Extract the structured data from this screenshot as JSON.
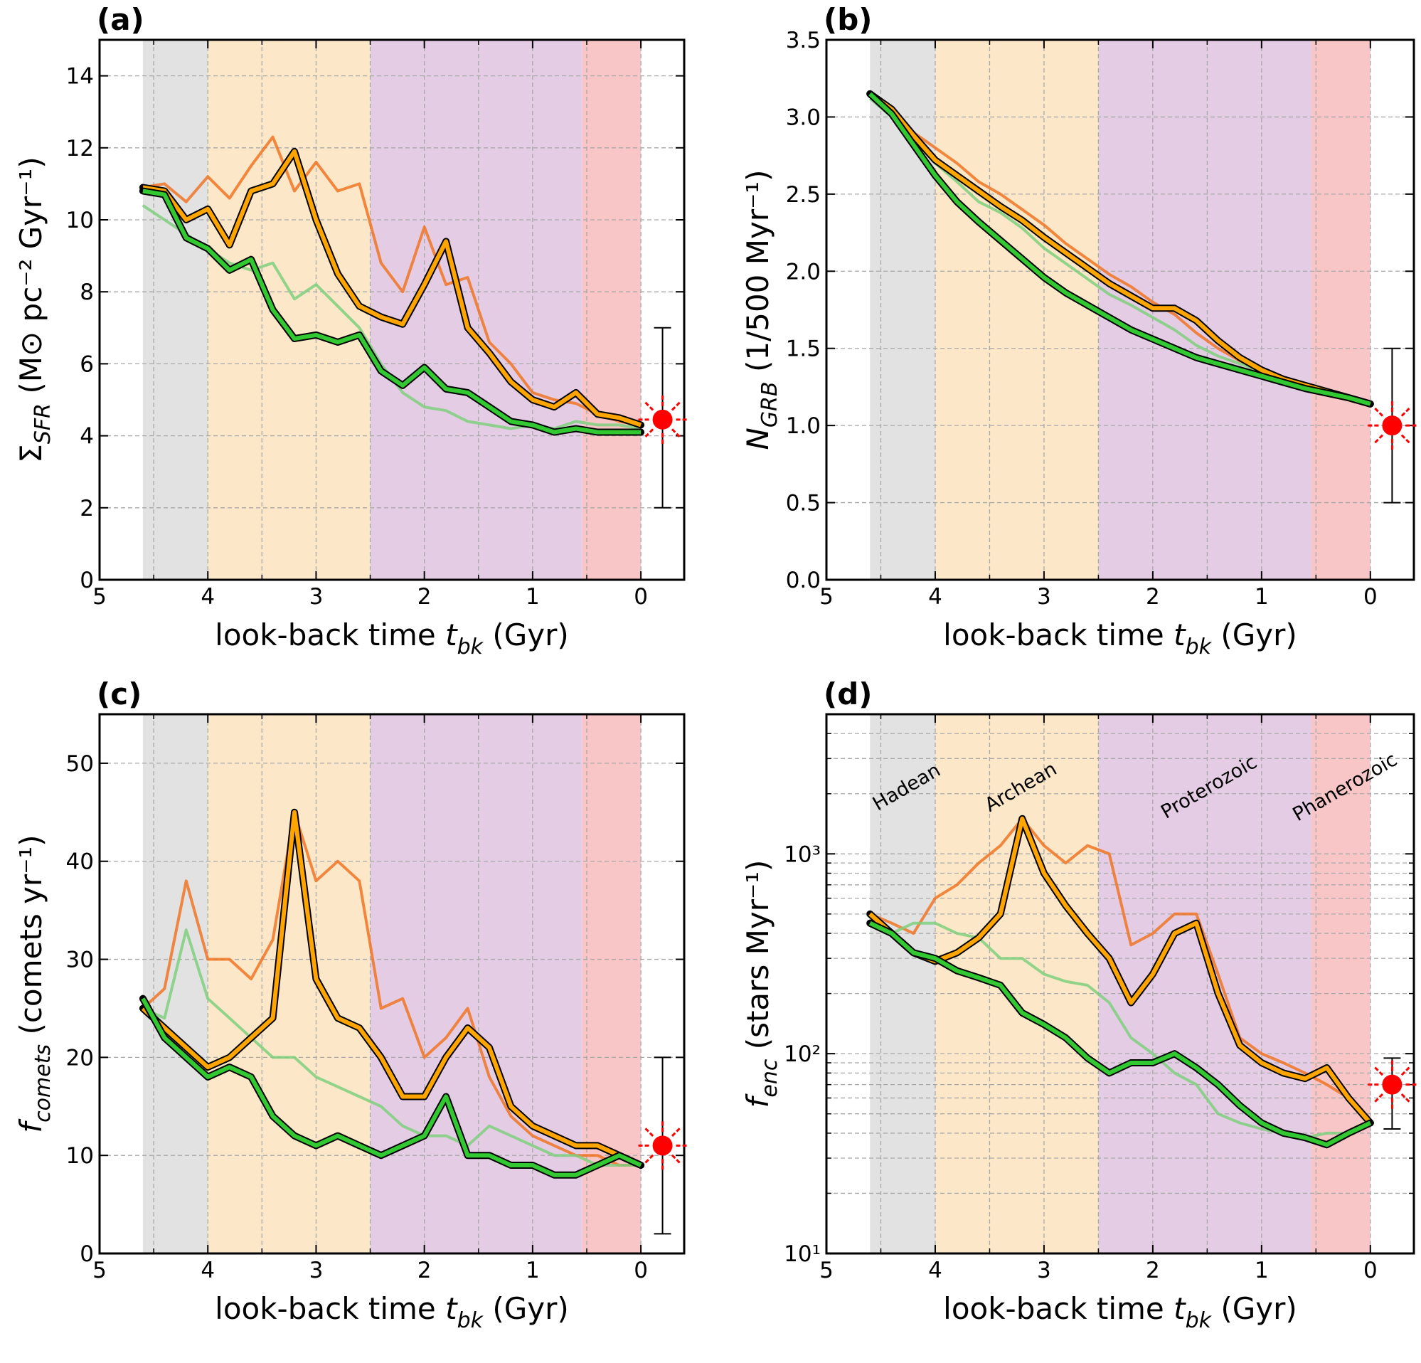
{
  "chart_data": [
    {
      "type": "line",
      "title": "(a)",
      "xlabel": {
        "prefix": "look-back time ",
        "symbol": "t",
        "sub": "bk",
        "unit": " (Gyr)"
      },
      "ylabel": {
        "symbol": "Σ",
        "sub": "SFR",
        "unit": " (M⊙ pc⁻² Gyr⁻¹)"
      },
      "xlim": [
        5,
        -0.4
      ],
      "xticks": [
        5,
        4,
        3,
        2,
        1,
        0
      ],
      "minor_xticks": [
        4.5,
        3.5,
        2.5,
        1.5,
        0.5
      ],
      "ylim": [
        0,
        15
      ],
      "yticks": [
        0,
        2,
        4,
        6,
        8,
        10,
        12,
        14
      ],
      "grid": true,
      "bands": [
        {
          "from": 4.6,
          "to": 4.0,
          "color": "#e2e2e2"
        },
        {
          "from": 4.0,
          "to": 2.5,
          "color": "#fce8c8"
        },
        {
          "from": 2.5,
          "to": 0.541,
          "color": "#e4cde4"
        },
        {
          "from": 0.541,
          "to": 0,
          "color": "#f8c6c6"
        }
      ],
      "x": [
        4.6,
        4.4,
        4.2,
        4.0,
        3.8,
        3.6,
        3.4,
        3.2,
        3.0,
        2.8,
        2.6,
        2.4,
        2.2,
        2.0,
        1.8,
        1.6,
        1.4,
        1.2,
        1.0,
        0.8,
        0.6,
        0.4,
        0.2,
        0.0
      ],
      "series": [
        {
          "color": "#f07424",
          "values": [
            10.9,
            11.0,
            10.5,
            11.2,
            10.6,
            11.5,
            12.3,
            10.8,
            11.6,
            10.8,
            11.0,
            8.8,
            8.0,
            9.8,
            8.2,
            8.4,
            6.6,
            6.0,
            5.2,
            5.0,
            4.9,
            4.6,
            4.4,
            4.3
          ]
        },
        {
          "color": "#7fcf7f",
          "values": [
            10.4,
            10.0,
            9.6,
            9.2,
            8.8,
            8.6,
            8.8,
            7.8,
            8.2,
            7.6,
            7.0,
            6.0,
            5.2,
            4.8,
            4.7,
            4.4,
            4.3,
            4.2,
            4.3,
            4.2,
            4.4,
            4.3,
            4.3,
            4.2
          ]
        },
        {
          "color": "#ffa500",
          "outline": "#000000",
          "values": [
            10.9,
            10.8,
            10.0,
            10.3,
            9.3,
            10.8,
            11.0,
            11.9,
            10.0,
            8.5,
            7.6,
            7.3,
            7.1,
            8.2,
            9.4,
            7.0,
            6.3,
            5.5,
            5.0,
            4.8,
            5.2,
            4.6,
            4.5,
            4.3
          ]
        },
        {
          "color": "#32c832",
          "outline": "#000000",
          "values": [
            10.8,
            10.7,
            9.5,
            9.2,
            8.6,
            8.9,
            7.5,
            6.7,
            6.8,
            6.6,
            6.8,
            5.8,
            5.4,
            5.9,
            5.3,
            5.2,
            4.8,
            4.4,
            4.3,
            4.1,
            4.2,
            4.1,
            4.1,
            4.1
          ]
        }
      ],
      "point": {
        "x": -0.2,
        "y": 4.45,
        "ylow": 2,
        "yhigh": 7,
        "color": "#ff0000"
      }
    },
    {
      "type": "line",
      "title": "(b)",
      "xlabel": {
        "prefix": "look-back time ",
        "symbol": "t",
        "sub": "bk",
        "unit": " (Gyr)"
      },
      "ylabel": {
        "symbol": "N",
        "sub": "GRB",
        "unit": " (1/500 Myr⁻¹)"
      },
      "xlim": [
        5,
        -0.4
      ],
      "xticks": [
        5,
        4,
        3,
        2,
        1,
        0
      ],
      "minor_xticks": [
        4.5,
        3.5,
        2.5,
        1.5,
        0.5
      ],
      "ylim": [
        0,
        3.5
      ],
      "yticks": [
        {
          "value": 0,
          "label": "0.0"
        },
        0.5,
        {
          "value": 1,
          "label": "1.0"
        },
        1.5,
        {
          "value": 2,
          "label": "2.0"
        },
        2.5,
        {
          "value": 3,
          "label": "3.0"
        },
        3.5
      ],
      "grid": true,
      "bands": [
        {
          "from": 4.6,
          "to": 4.0,
          "color": "#e2e2e2"
        },
        {
          "from": 4.0,
          "to": 2.5,
          "color": "#fce8c8"
        },
        {
          "from": 2.5,
          "to": 0.541,
          "color": "#e4cde4"
        },
        {
          "from": 0.541,
          "to": 0,
          "color": "#f8c6c6"
        }
      ],
      "x": [
        4.6,
        4.4,
        4.2,
        4.0,
        3.8,
        3.6,
        3.4,
        3.2,
        3.0,
        2.8,
        2.6,
        2.4,
        2.2,
        2.0,
        1.8,
        1.6,
        1.4,
        1.2,
        1.0,
        0.8,
        0.6,
        0.4,
        0.2,
        0.0
      ],
      "series": [
        {
          "color": "#f07424",
          "values": [
            3.15,
            3.05,
            2.9,
            2.8,
            2.7,
            2.58,
            2.5,
            2.4,
            2.3,
            2.18,
            2.08,
            1.98,
            1.9,
            1.8,
            1.72,
            1.6,
            1.5,
            1.42,
            1.36,
            1.3,
            1.26,
            1.22,
            1.18,
            1.14
          ]
        },
        {
          "color": "#7fcf7f",
          "values": [
            3.12,
            3.0,
            2.85,
            2.7,
            2.58,
            2.45,
            2.38,
            2.28,
            2.15,
            2.05,
            1.95,
            1.85,
            1.78,
            1.7,
            1.62,
            1.52,
            1.45,
            1.4,
            1.35,
            1.3,
            1.26,
            1.22,
            1.18,
            1.14
          ]
        },
        {
          "color": "#ffa500",
          "outline": "#000000",
          "values": [
            3.15,
            3.05,
            2.88,
            2.72,
            2.62,
            2.52,
            2.42,
            2.33,
            2.22,
            2.12,
            2.02,
            1.92,
            1.84,
            1.76,
            1.76,
            1.68,
            1.55,
            1.44,
            1.36,
            1.3,
            1.26,
            1.22,
            1.18,
            1.14
          ]
        },
        {
          "color": "#32c832",
          "outline": "#000000",
          "values": [
            3.15,
            3.02,
            2.82,
            2.62,
            2.45,
            2.32,
            2.2,
            2.08,
            1.96,
            1.86,
            1.78,
            1.7,
            1.62,
            1.56,
            1.5,
            1.44,
            1.4,
            1.36,
            1.32,
            1.28,
            1.24,
            1.21,
            1.18,
            1.14
          ]
        }
      ],
      "point": {
        "x": -0.2,
        "y": 1.0,
        "ylow": 0.5,
        "yhigh": 1.5,
        "color": "#ff0000"
      }
    },
    {
      "type": "line",
      "title": "(c)",
      "xlabel": {
        "prefix": "look-back time ",
        "symbol": "t",
        "sub": "bk",
        "unit": " (Gyr)"
      },
      "ylabel": {
        "symbol": "f",
        "sub": "comets",
        "unit": " (comets yr⁻¹)"
      },
      "xlim": [
        5,
        -0.4
      ],
      "xticks": [
        5,
        4,
        3,
        2,
        1,
        0
      ],
      "minor_xticks": [
        4.5,
        3.5,
        2.5,
        1.5,
        0.5
      ],
      "ylim": [
        0,
        55
      ],
      "yticks": [
        0,
        10,
        20,
        30,
        40,
        50
      ],
      "grid": true,
      "bands": [
        {
          "from": 4.6,
          "to": 4.0,
          "color": "#e2e2e2"
        },
        {
          "from": 4.0,
          "to": 2.5,
          "color": "#fce8c8"
        },
        {
          "from": 2.5,
          "to": 0.541,
          "color": "#e4cde4"
        },
        {
          "from": 0.541,
          "to": 0,
          "color": "#f8c6c6"
        }
      ],
      "x": [
        4.6,
        4.4,
        4.2,
        4.0,
        3.8,
        3.6,
        3.4,
        3.2,
        3.0,
        2.8,
        2.6,
        2.4,
        2.2,
        2.0,
        1.8,
        1.6,
        1.4,
        1.2,
        1.0,
        0.8,
        0.6,
        0.4,
        0.2,
        0.0
      ],
      "series": [
        {
          "color": "#f07424",
          "values": [
            25,
            27,
            38,
            30,
            30,
            28,
            32,
            45,
            38,
            40,
            38,
            25,
            26,
            20,
            22,
            25,
            18,
            14,
            12,
            11,
            10,
            10,
            9,
            9
          ]
        },
        {
          "color": "#7fcf7f",
          "values": [
            25,
            24,
            33,
            26,
            24,
            22,
            20,
            20,
            18,
            17,
            16,
            15,
            13,
            12,
            12,
            11,
            13,
            12,
            11,
            10,
            10,
            9,
            9,
            9
          ]
        },
        {
          "color": "#ffa500",
          "outline": "#000000",
          "values": [
            25,
            23,
            21,
            19,
            20,
            22,
            24,
            45,
            28,
            24,
            23,
            20,
            16,
            16,
            20,
            23,
            21,
            15,
            13,
            12,
            11,
            11,
            10,
            9
          ]
        },
        {
          "color": "#32c832",
          "outline": "#000000",
          "values": [
            26,
            22,
            20,
            18,
            19,
            18,
            14,
            12,
            11,
            12,
            11,
            10,
            11,
            12,
            16,
            10,
            10,
            9,
            9,
            8,
            8,
            9,
            10,
            9
          ]
        }
      ],
      "point": {
        "x": -0.2,
        "y": 11,
        "ylow": 2,
        "yhigh": 20,
        "color": "#ff0000"
      }
    },
    {
      "type": "line",
      "title": "(d)",
      "xlabel": {
        "prefix": "look-back time ",
        "symbol": "t",
        "sub": "bk",
        "unit": " (Gyr)"
      },
      "ylabel": {
        "symbol": "f",
        "sub": "enc",
        "unit": " (stars Myr⁻¹)"
      },
      "xlim": [
        5,
        -0.4
      ],
      "xticks": [
        5,
        4,
        3,
        2,
        1,
        0
      ],
      "minor_xticks": [
        4.5,
        3.5,
        2.5,
        1.5,
        0.5
      ],
      "ylim": [
        10,
        5000
      ],
      "yscale": "log",
      "yticks": [
        {
          "value": 10,
          "label": "10¹"
        },
        {
          "value": 100,
          "label": "10²"
        },
        {
          "value": 1000,
          "label": "10³"
        }
      ],
      "minor_yticks": [
        20,
        30,
        40,
        50,
        60,
        70,
        80,
        90,
        200,
        300,
        400,
        500,
        600,
        700,
        800,
        900,
        2000,
        3000,
        4000
      ],
      "grid": true,
      "bands": [
        {
          "from": 4.6,
          "to": 4.0,
          "color": "#e2e2e2",
          "label": "Hadean"
        },
        {
          "from": 4.0,
          "to": 2.5,
          "color": "#fce8c8",
          "label": "Archean"
        },
        {
          "from": 2.5,
          "to": 0.541,
          "color": "#e4cde4",
          "label": "Proterozoic"
        },
        {
          "from": 0.541,
          "to": 0,
          "color": "#f8c6c6",
          "label": "Phanerozoic"
        }
      ],
      "x": [
        4.6,
        4.4,
        4.2,
        4.0,
        3.8,
        3.6,
        3.4,
        3.2,
        3.0,
        2.8,
        2.6,
        2.4,
        2.2,
        2.0,
        1.8,
        1.6,
        1.4,
        1.2,
        1.0,
        0.8,
        0.6,
        0.4,
        0.2,
        0.0
      ],
      "series": [
        {
          "color": "#f07424",
          "values": [
            500,
            450,
            400,
            600,
            700,
            900,
            1100,
            1500,
            1100,
            900,
            1100,
            1000,
            350,
            400,
            500,
            500,
            250,
            120,
            100,
            90,
            80,
            70,
            60,
            45
          ]
        },
        {
          "color": "#7fcf7f",
          "values": [
            450,
            400,
            450,
            450,
            400,
            380,
            300,
            300,
            250,
            230,
            220,
            180,
            120,
            100,
            80,
            70,
            50,
            45,
            42,
            40,
            38,
            40,
            40,
            45
          ]
        },
        {
          "color": "#ffa500",
          "outline": "#000000",
          "values": [
            500,
            400,
            320,
            290,
            320,
            380,
            500,
            1500,
            800,
            550,
            400,
            300,
            180,
            250,
            400,
            450,
            200,
            110,
            90,
            80,
            75,
            85,
            60,
            45
          ]
        },
        {
          "color": "#32c832",
          "outline": "#000000",
          "values": [
            450,
            400,
            320,
            300,
            260,
            240,
            220,
            160,
            140,
            120,
            95,
            80,
            90,
            90,
            100,
            85,
            70,
            55,
            45,
            40,
            38,
            35,
            40,
            45
          ]
        }
      ],
      "point": {
        "x": -0.2,
        "y": 70,
        "ylow": 42,
        "yhigh": 95,
        "color": "#ff0000"
      }
    }
  ]
}
